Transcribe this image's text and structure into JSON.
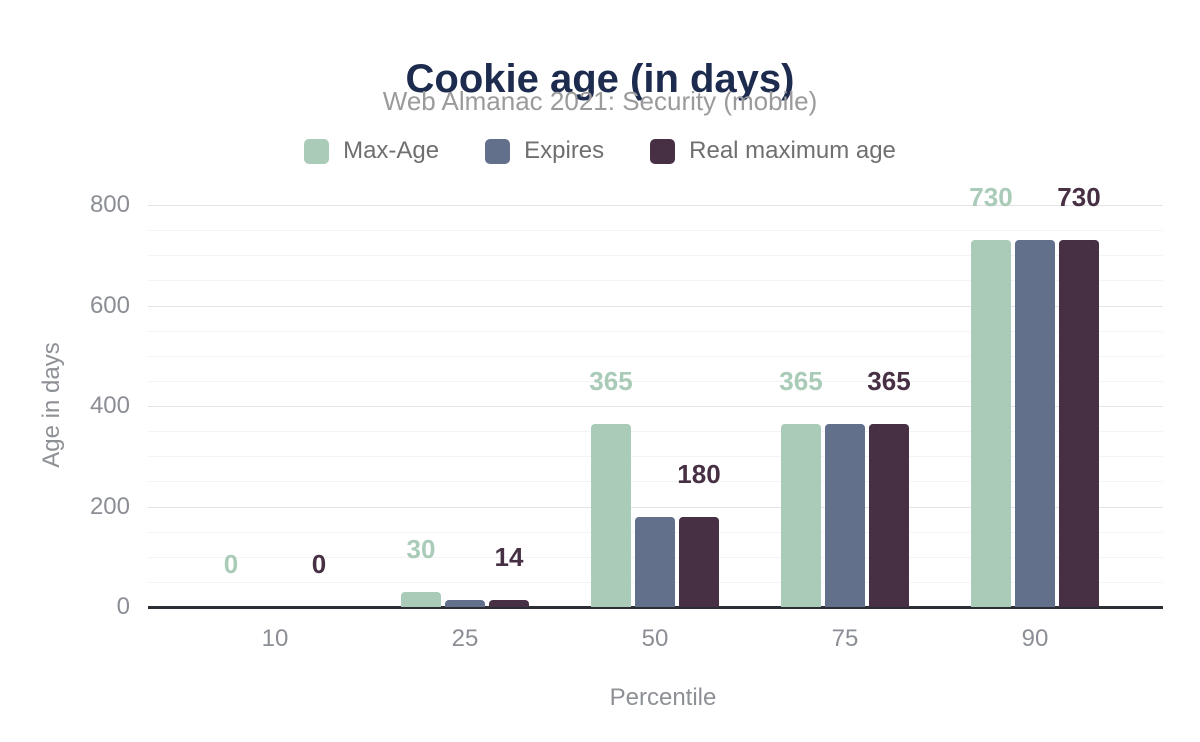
{
  "header": {
    "title": "Cookie age (in days)",
    "subtitle": "Web Almanac 2021: Security (mobile)"
  },
  "chart_data": {
    "type": "bar",
    "title": "Cookie age (in days)",
    "subtitle": "Web Almanac 2021: Security (mobile)",
    "categories": [
      "10",
      "25",
      "50",
      "75",
      "90"
    ],
    "series": [
      {
        "name": "Max-Age",
        "color": "#a9cbb7",
        "values": [
          0,
          30,
          365,
          365,
          730
        ],
        "show_labels": true
      },
      {
        "name": "Expires",
        "color": "#62708c",
        "values": [
          0,
          14,
          180,
          365,
          730
        ],
        "show_labels": false
      },
      {
        "name": "Real maximum age",
        "color": "#473044",
        "values": [
          0,
          14,
          180,
          365,
          730
        ],
        "show_labels": true
      }
    ],
    "xlabel": "Percentile",
    "ylabel": "Age in days",
    "ylim": [
      0,
      800
    ],
    "yticks": [
      0,
      200,
      400,
      600,
      800
    ],
    "minor_tick_step": 50,
    "grid": true,
    "legend_position": "top",
    "palette": {
      "title_color": "#1d2b4f",
      "subtitle_color": "#9b9b9b",
      "axis_line_color": "#2c2e36",
      "tick_label_color": "#8b8e94",
      "major_grid_color": "#e4e4e7",
      "minor_grid_color": "#f4f4f6"
    }
  }
}
